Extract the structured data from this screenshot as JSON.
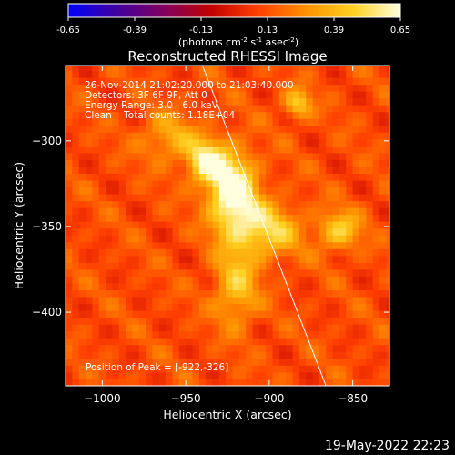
{
  "chart_data": {
    "type": "heatmap",
    "title": "Reconstructed RHESSI Image",
    "xlabel": "Heliocentric X (arcsec)",
    "ylabel": "Heliocentric Y (arcsec)",
    "xlim": [
      -1022,
      -828
    ],
    "ylim": [
      -443,
      -256
    ],
    "x_ticks": [
      -1000,
      -950,
      -900,
      -850
    ],
    "y_ticks": [
      -300,
      -350,
      -400
    ],
    "colorbar": {
      "min": -0.65,
      "max": 0.65,
      "ticks": [
        "-0.65",
        "-0.39",
        "-0.13",
        "0.13",
        "0.39",
        "0.65"
      ],
      "unit_main": "(photons cm",
      "unit_sup1": "-2",
      "unit_mid": " s",
      "unit_sup2": "-1",
      "unit_end": " asec",
      "unit_sup3": "-2",
      "unit_close": ")",
      "colormap": [
        "#0000ff",
        "#4000a0",
        "#800060",
        "#c00000",
        "#ff4000",
        "#ff9000",
        "#ffd020",
        "#ffffe0"
      ]
    },
    "annotations": [
      "26-Nov-2014 21:02:20.000 to 21:03:40.000",
      "Detectors: 3F 6F 9F, Att 0",
      "Energy Range: 3.0 - 6.0 keV",
      "Clean    Total counts: 1.18E+04"
    ],
    "peak_label": "Position of Peak = [-922,-326]",
    "peak": {
      "x": -922,
      "y": -326
    },
    "sources": [
      {
        "x": -922,
        "y": -330,
        "sx": 10,
        "sy": 16,
        "amp": 0.62
      },
      {
        "x": -938,
        "y": -312,
        "sx": 8,
        "sy": 9,
        "amp": 0.45
      },
      {
        "x": -902,
        "y": -352,
        "sx": 14,
        "sy": 11,
        "amp": 0.38
      },
      {
        "x": -920,
        "y": -385,
        "sx": 9,
        "sy": 16,
        "amp": 0.32
      },
      {
        "x": -858,
        "y": -352,
        "sx": 9,
        "sy": 8,
        "amp": 0.34
      },
      {
        "x": -883,
        "y": -278,
        "sx": 6,
        "sy": 6,
        "amp": 0.33
      },
      {
        "x": -960,
        "y": -298,
        "sx": 12,
        "sy": 10,
        "amp": 0.24
      }
    ],
    "limb_line": [
      [
        -940,
        -256
      ],
      [
        -866,
        -443
      ]
    ],
    "background": 0.12
  },
  "footer": {
    "date": "19-May-2022 22:23"
  }
}
